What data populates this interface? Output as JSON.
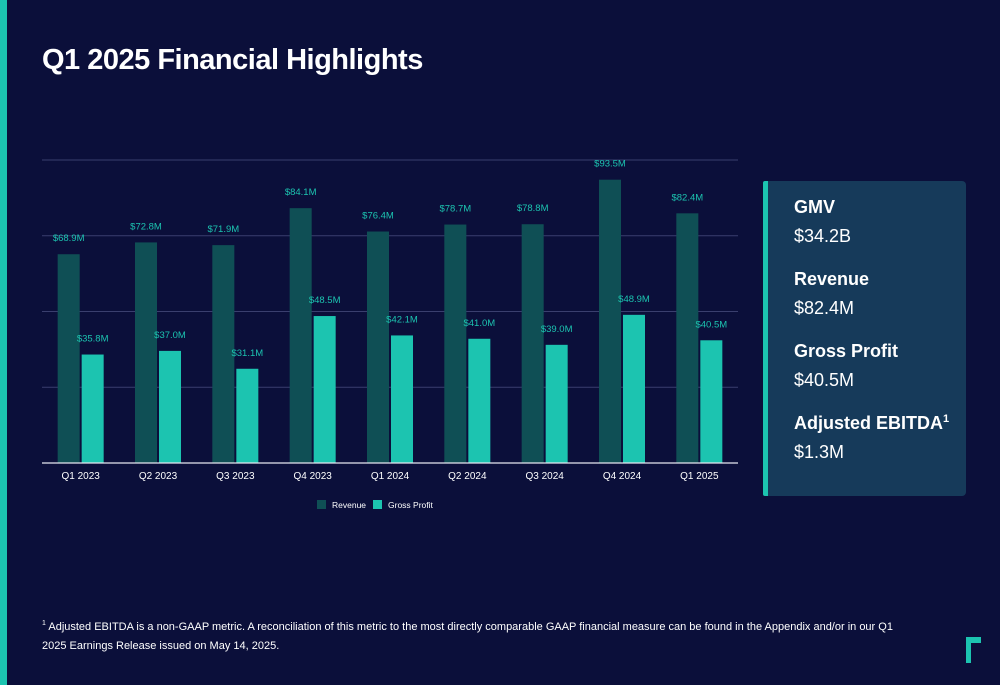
{
  "title": "Q1 2025 Financial Highlights",
  "colors": {
    "background": "#0b0f3a",
    "revenue": "#0f4f55",
    "gross_profit": "#1cc4b0",
    "accent": "#1cc4b0",
    "panel": "#163a5a"
  },
  "chart_data": {
    "type": "bar",
    "categories": [
      "Q1 2023",
      "Q2 2023",
      "Q3 2023",
      "Q4 2023",
      "Q1 2024",
      "Q2 2024",
      "Q3 2024",
      "Q4 2024",
      "Q1 2025"
    ],
    "series": [
      {
        "name": "Revenue",
        "values": [
          68.9,
          72.8,
          71.9,
          84.1,
          76.4,
          78.7,
          78.8,
          93.5,
          82.4
        ],
        "labels": [
          "$68.9M",
          "$72.8M",
          "$71.9M",
          "$84.1M",
          "$76.4M",
          "$78.7M",
          "$78.8M",
          "$93.5M",
          "$82.4M"
        ]
      },
      {
        "name": "Gross Profit",
        "values": [
          35.8,
          37.0,
          31.1,
          48.5,
          42.1,
          41.0,
          39.0,
          48.9,
          40.5
        ],
        "labels": [
          "$35.8M",
          "$37.0M",
          "$31.1M",
          "$48.5M",
          "$42.1M",
          "$41.0M",
          "$39.0M",
          "$48.9M",
          "$40.5M"
        ]
      }
    ],
    "ylim": [
      0,
      100
    ],
    "grid": true,
    "legend": "bottom",
    "title": "",
    "xlabel": "",
    "ylabel": ""
  },
  "panel": {
    "metrics": [
      {
        "label": "GMV",
        "value": "$34.2B"
      },
      {
        "label": "Revenue",
        "value": "$82.4M"
      },
      {
        "label": "Gross Profit",
        "value": "$40.5M"
      },
      {
        "label": "Adjusted EBITDA",
        "sup": "1",
        "value": "$1.3M"
      }
    ]
  },
  "footnote": {
    "marker": "1",
    "text": "Adjusted EBITDA is a non-GAAP metric. A reconciliation of this metric to the most directly comparable GAAP financial measure can be found in the Appendix and/or in our Q1 2025 Earnings Release issued on May 14, 2025."
  }
}
